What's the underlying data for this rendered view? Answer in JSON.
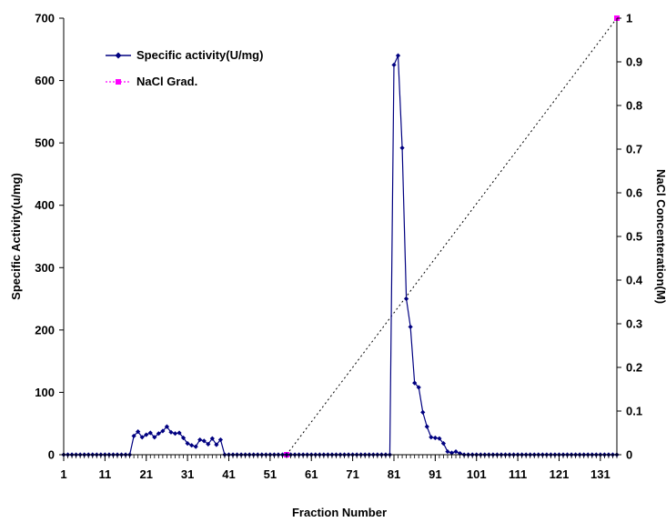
{
  "chart_data": {
    "type": "line",
    "xlabel": "Fraction Number",
    "ylabel_left": "Specific Activity(u/mg)",
    "ylabel_right": "NaCl Concenteration(M)",
    "xlim": [
      1,
      135
    ],
    "ylim_left": [
      0,
      700
    ],
    "ylim_right": [
      0,
      1
    ],
    "x_ticks": [
      1,
      11,
      21,
      31,
      41,
      51,
      61,
      71,
      81,
      91,
      101,
      111,
      121,
      131
    ],
    "y_left_ticks": [
      0,
      100,
      200,
      300,
      400,
      500,
      600,
      700
    ],
    "y_right_ticks": [
      "0",
      "0.1",
      "0.2",
      "0.3",
      "0.4",
      "0.5",
      "0.6",
      "0.7",
      "0.8",
      "0.9",
      "1"
    ],
    "grid": false,
    "legend_position": "top-left",
    "series": [
      {
        "name": "Specific activity(U/mg)",
        "axis": "left",
        "color": "#000080",
        "marker": "diamond",
        "line_style": "solid",
        "x": [
          1,
          2,
          3,
          4,
          5,
          6,
          7,
          8,
          9,
          10,
          11,
          12,
          13,
          14,
          15,
          16,
          17,
          18,
          19,
          20,
          21,
          22,
          23,
          24,
          25,
          26,
          27,
          28,
          29,
          30,
          31,
          32,
          33,
          34,
          35,
          36,
          37,
          38,
          39,
          40,
          41,
          42,
          43,
          44,
          45,
          46,
          47,
          48,
          49,
          50,
          51,
          52,
          53,
          54,
          55,
          56,
          57,
          58,
          59,
          60,
          61,
          62,
          63,
          64,
          65,
          66,
          67,
          68,
          69,
          70,
          71,
          72,
          73,
          74,
          75,
          76,
          77,
          78,
          79,
          80,
          81,
          82,
          83,
          84,
          85,
          86,
          87,
          88,
          89,
          90,
          91,
          92,
          93,
          94,
          95,
          96,
          97,
          98,
          99,
          100,
          101,
          102,
          103,
          104,
          105,
          106,
          107,
          108,
          109,
          110,
          111,
          112,
          113,
          114,
          115,
          116,
          117,
          118,
          119,
          120,
          121,
          122,
          123,
          124,
          125,
          126,
          127,
          128,
          129,
          130,
          131,
          132,
          133,
          134,
          135
        ],
        "y": [
          0,
          0,
          0,
          0,
          0,
          0,
          0,
          0,
          0,
          0,
          0,
          0,
          0,
          0,
          0,
          0,
          0,
          30,
          37,
          28,
          32,
          35,
          28,
          34,
          38,
          45,
          36,
          34,
          35,
          27,
          18,
          15,
          13,
          24,
          22,
          17,
          26,
          16,
          24,
          0,
          0,
          0,
          0,
          0,
          0,
          0,
          0,
          0,
          0,
          0,
          0,
          0,
          0,
          0,
          0,
          0,
          0,
          0,
          0,
          0,
          0,
          0,
          0,
          0,
          0,
          0,
          0,
          0,
          0,
          0,
          0,
          0,
          0,
          0,
          0,
          0,
          0,
          0,
          0,
          0,
          625,
          640,
          492,
          250,
          205,
          115,
          108,
          68,
          45,
          28,
          27,
          26,
          18,
          5,
          3,
          5,
          2,
          0,
          0,
          0,
          0,
          0,
          0,
          0,
          0,
          0,
          0,
          0,
          0,
          0,
          0,
          0,
          0,
          0,
          0,
          0,
          0,
          0,
          0,
          0,
          0,
          0,
          0,
          0,
          0,
          0,
          0,
          0,
          0,
          0,
          0,
          0,
          0,
          0,
          0
        ]
      },
      {
        "name": "NaCl Grad.",
        "axis": "right",
        "color": "#ff00ff",
        "marker": "square",
        "line_style": "dotted",
        "x": [
          55,
          135
        ],
        "y": [
          0,
          1
        ]
      }
    ]
  }
}
